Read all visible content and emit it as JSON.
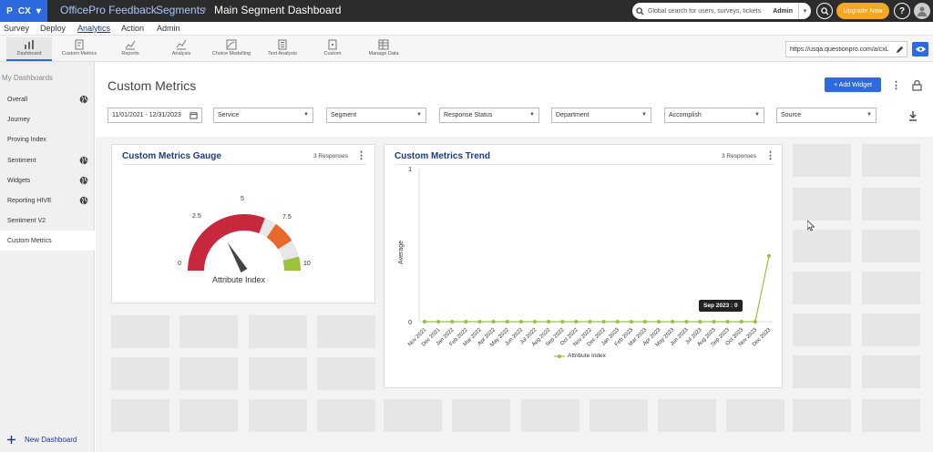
{
  "topbar": {
    "app_short": "CX",
    "breadcrumbs": [
      "OfficePro Feedback",
      "Segments",
      "Main Segment Dashboard"
    ],
    "search_placeholder": "Global search for users, surveys, tickets",
    "search_scope": "Admin",
    "upgrade_label": "Upgrade Now",
    "help_label": "?"
  },
  "menu": {
    "items": [
      "Survey",
      "Deploy",
      "Analytics",
      "Action",
      "Admin"
    ],
    "active": "Analytics"
  },
  "toolbar": {
    "items": [
      "Dashboard",
      "Custom Metrics",
      "Reports",
      "Analysis",
      "Choice Modelling",
      "Text Analysis",
      "Custom",
      "Manage Data"
    ],
    "url": "https://usqa.questionpro.com/a/cxL"
  },
  "sidebar": {
    "title": "My Dashboards",
    "items": [
      "Overall",
      "Journey",
      "Proving Index",
      "Sentiment",
      "Widgets",
      "Reporting HIVE",
      "Sentiment V2",
      "Custom Metrics"
    ],
    "globe_items": [
      "Overall",
      "Sentiment",
      "Widgets",
      "Reporting HIVE"
    ],
    "active": "Custom Metrics",
    "new_dashboard": "New Dashboard"
  },
  "page": {
    "title": "Custom Metrics",
    "add_widget": "+ Add Widget"
  },
  "filters": {
    "date_range": "11/01/2021 - 12/31/2023",
    "dropdowns": [
      "Service",
      "Segment",
      "Response Status",
      "Department",
      "Accomplish",
      "Source"
    ]
  },
  "gauge_card": {
    "title": "Custom Metrics Gauge",
    "responses": "3 Responses",
    "caption": "Attribute Index",
    "labels": {
      "min": "0",
      "q1": "2.5",
      "mid": "5",
      "q3": "7.5",
      "max": "10"
    },
    "value": 3.3,
    "colors": {
      "red": "#c8283e",
      "orange": "#e8692b",
      "green": "#9ac23c",
      "track": "#e8e8e8"
    }
  },
  "trend_card": {
    "title": "Custom Metrics Trend",
    "responses": "3 Responses",
    "tooltip": "Sep 2023 : 0"
  },
  "chart_data": {
    "type": "line",
    "title": "Custom Metrics Trend",
    "xlabel": "",
    "ylabel": "Average",
    "ylim": [
      0,
      1
    ],
    "yticks": [
      "0",
      "1"
    ],
    "x": [
      "Nov 2021",
      "Dec 2021",
      "Jan 2022",
      "Feb 2022",
      "Mar 2022",
      "Apr 2022",
      "May 2022",
      "Jun 2022",
      "Jul 2022",
      "Aug 2022",
      "Sep 2022",
      "Oct 2022",
      "Nov 2022",
      "Dec 2022",
      "Jan 2023",
      "Feb 2023",
      "Mar 2023",
      "Apr 2023",
      "May 2023",
      "Jun 2023",
      "Jul 2023",
      "Aug 2023",
      "Sep 2023",
      "Oct 2023",
      "Nov 2023",
      "Dec 2023"
    ],
    "series": [
      {
        "name": "Attribute Index",
        "color": "#9ac23c",
        "values": [
          0,
          0,
          0,
          0,
          0,
          0,
          0,
          0,
          0,
          0,
          0,
          0,
          0,
          0,
          0,
          0,
          0,
          0,
          0,
          0,
          0,
          0,
          0,
          0,
          0,
          0.43
        ]
      }
    ],
    "grid": false,
    "legend": "bottom"
  },
  "colors": {
    "accent": "#2d6ae0",
    "topbar": "#2c2c2c",
    "upgrade": "#f5a623",
    "title_blue": "#1a3a8a"
  }
}
